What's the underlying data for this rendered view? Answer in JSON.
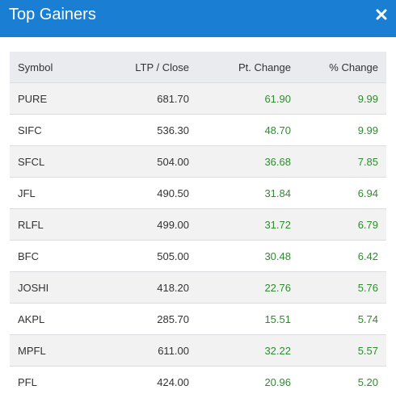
{
  "modal": {
    "title": "Top Gainers",
    "close_icon": "close-icon",
    "header_color": "#1a7ed3"
  },
  "table": {
    "columns": [
      "Symbol",
      "LTP / Close",
      "Pt. Change",
      "% Change"
    ],
    "rows": [
      {
        "symbol": "PURE",
        "ltp": "681.70",
        "pt_change": "61.90",
        "pct_change": "9.99"
      },
      {
        "symbol": "SIFC",
        "ltp": "536.30",
        "pt_change": "48.70",
        "pct_change": "9.99"
      },
      {
        "symbol": "SFCL",
        "ltp": "504.00",
        "pt_change": "36.68",
        "pct_change": "7.85"
      },
      {
        "symbol": "JFL",
        "ltp": "490.50",
        "pt_change": "31.84",
        "pct_change": "6.94"
      },
      {
        "symbol": "RLFL",
        "ltp": "499.00",
        "pt_change": "31.72",
        "pct_change": "6.79"
      },
      {
        "symbol": "BFC",
        "ltp": "505.00",
        "pt_change": "30.48",
        "pct_change": "6.42"
      },
      {
        "symbol": "JOSHI",
        "ltp": "418.20",
        "pt_change": "22.76",
        "pct_change": "5.76"
      },
      {
        "symbol": "AKPL",
        "ltp": "285.70",
        "pt_change": "15.51",
        "pct_change": "5.74"
      },
      {
        "symbol": "MPFL",
        "ltp": "611.00",
        "pt_change": "32.22",
        "pct_change": "5.57"
      },
      {
        "symbol": "PFL",
        "ltp": "424.00",
        "pt_change": "20.96",
        "pct_change": "5.20"
      }
    ],
    "positive_color": "#2e8b2e"
  }
}
